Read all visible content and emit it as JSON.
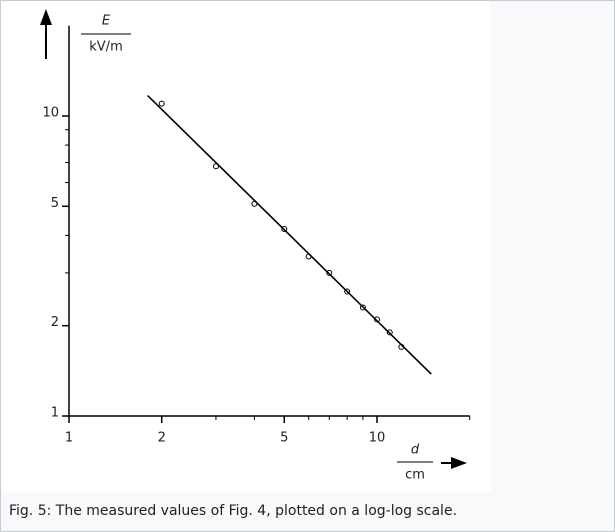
{
  "chart_data": {
    "type": "scatter",
    "log_x": true,
    "log_y": true,
    "ylabel_symbol": "E",
    "ylabel_unit": "kV/m",
    "xlabel_symbol": "d",
    "xlabel_unit": "cm",
    "xlim": [
      1,
      20
    ],
    "ylim": [
      1,
      20
    ],
    "xticks": [
      1,
      2,
      5,
      10
    ],
    "yticks": [
      1,
      2,
      5,
      10
    ],
    "xminorticks": [
      3,
      4,
      6,
      7,
      8,
      9,
      20
    ],
    "yminorticks": [
      3,
      4,
      6,
      7,
      8,
      9
    ],
    "series": [
      {
        "kind": "points",
        "color": "#000000",
        "x": [
          2,
          3,
          4,
          5,
          6,
          7,
          8,
          9,
          10,
          11,
          12
        ],
        "values": [
          11,
          6.8,
          5.1,
          4.2,
          3.4,
          3.0,
          2.6,
          2.3,
          2.1,
          1.9,
          1.7
        ]
      },
      {
        "kind": "line",
        "color": "#000000",
        "x": [
          1.8,
          15
        ],
        "values": [
          11.7,
          1.38
        ]
      }
    ],
    "caption": "Fig. 5: The measured values of Fig. 4, plotted on a log-log scale."
  }
}
